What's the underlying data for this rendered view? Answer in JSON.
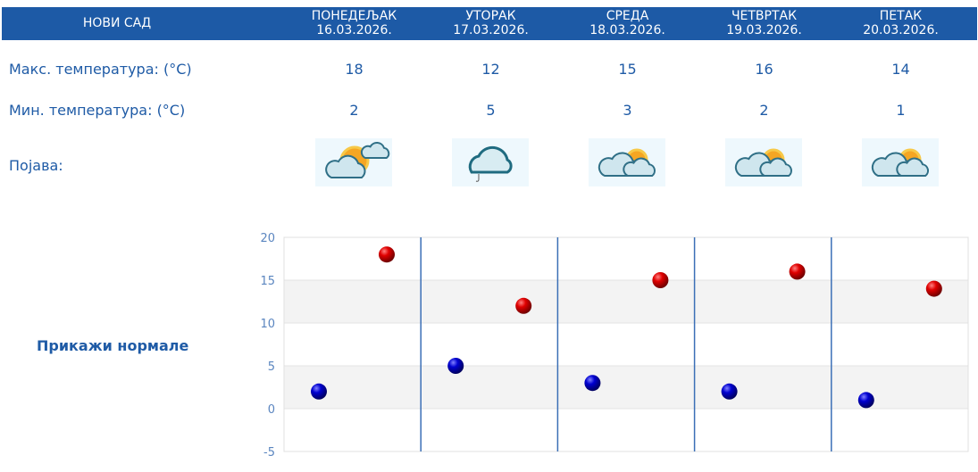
{
  "header": {
    "city": "НОВИ САД"
  },
  "days": [
    {
      "name": "ПОНЕДЕЉАК",
      "date": "16.03.2026.",
      "max": "18",
      "min": "2",
      "icon": "sun-cloud-icon"
    },
    {
      "name": "УТОРАК",
      "date": "17.03.2026.",
      "max": "12",
      "min": "5",
      "icon": "cloud-drizzle-icon"
    },
    {
      "name": "СРЕДА",
      "date": "18.03.2026.",
      "max": "15",
      "min": "3",
      "icon": "cloud-sun-icon"
    },
    {
      "name": "ЧЕТВРТАК",
      "date": "19.03.2026.",
      "max": "16",
      "min": "2",
      "icon": "cloud-sun-icon"
    },
    {
      "name": "ПЕТАК",
      "date": "20.03.2026.",
      "max": "14",
      "min": "1",
      "icon": "cloud-sun-icon"
    }
  ],
  "labels": {
    "max": "Макс. температура: (°C)",
    "min": "Мин. температура: (°C)",
    "phenomenon": "Појава:"
  },
  "show_normals": "Прикажи нормале",
  "colors": {
    "header": "#1d5aa6",
    "text": "#1f5ba6",
    "max_point": "#dd0000",
    "min_point": "#0000cc"
  },
  "chart_data": {
    "type": "scatter",
    "categories": [
      "16.03.2026.",
      "17.03.2026.",
      "18.03.2026.",
      "19.03.2026.",
      "20.03.2026."
    ],
    "series": [
      {
        "values": [
          2,
          5,
          3,
          2,
          1
        ],
        "color": "#0000cc"
      },
      {
        "values": [
          18,
          12,
          15,
          16,
          14
        ],
        "color": "#dd0000"
      }
    ],
    "ylim": [
      -5,
      20
    ],
    "yticks": [
      "20",
      "15",
      "10",
      "5",
      "0",
      "-5"
    ],
    "grid": true
  }
}
